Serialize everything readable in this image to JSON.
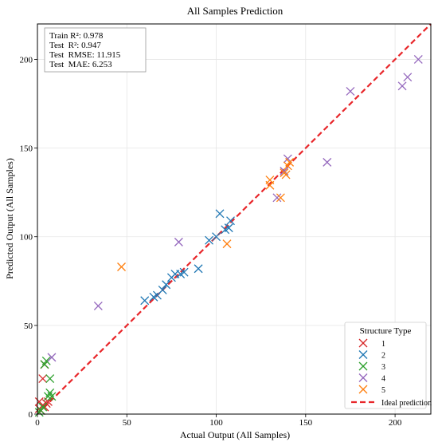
{
  "chart_data": {
    "type": "scatter",
    "title": "All Samples Prediction",
    "xlabel": "Actual Output (All Samples)",
    "ylabel": "Predicted Output (All Samples)",
    "xlim": [
      0,
      220
    ],
    "ylim": [
      0,
      220
    ],
    "xticks": [
      0,
      50,
      100,
      150,
      200
    ],
    "yticks": [
      0,
      50,
      100,
      150,
      200
    ],
    "grid": true,
    "marker": "x",
    "metrics": [
      "Train R²: 0.978",
      "Test  R²: 0.947",
      "Test  RMSE: 11.915",
      "Test  MAE: 6.253"
    ],
    "legend": {
      "title": "Structure Type",
      "placement": "lower-right",
      "ideal_label": "Ideal prediction"
    },
    "ideal_line": {
      "x": [
        0,
        220
      ],
      "y": [
        0,
        220
      ],
      "color": "#e8262a"
    },
    "series": [
      {
        "name": "1",
        "color": "#d62728",
        "points": [
          [
            1,
            7
          ],
          [
            1,
            3
          ],
          [
            2,
            2
          ],
          [
            3,
            5
          ],
          [
            3,
            20
          ],
          [
            4,
            28
          ],
          [
            4,
            4
          ],
          [
            5,
            6
          ],
          [
            6,
            7
          ]
        ]
      },
      {
        "name": "2",
        "color": "#1f77b4",
        "points": [
          [
            60,
            64
          ],
          [
            65,
            66
          ],
          [
            67,
            67
          ],
          [
            70,
            70
          ],
          [
            72,
            73
          ],
          [
            75,
            77
          ],
          [
            77,
            79
          ],
          [
            80,
            79
          ],
          [
            82,
            80
          ],
          [
            90,
            82
          ],
          [
            96,
            98
          ],
          [
            100,
            100
          ],
          [
            102,
            113
          ],
          [
            105,
            104
          ],
          [
            107,
            105
          ],
          [
            108,
            109
          ]
        ]
      },
      {
        "name": "3",
        "color": "#2ca02c",
        "points": [
          [
            1,
            1
          ],
          [
            2,
            2
          ],
          [
            3,
            4
          ],
          [
            4,
            28
          ],
          [
            5,
            30
          ],
          [
            6,
            10
          ],
          [
            7,
            12
          ],
          [
            7,
            20
          ],
          [
            8,
            10
          ]
        ]
      },
      {
        "name": "4",
        "color": "#9467bd",
        "points": [
          [
            8,
            32
          ],
          [
            34,
            61
          ],
          [
            79,
            97
          ],
          [
            134,
            122
          ],
          [
            138,
            137
          ],
          [
            140,
            144
          ],
          [
            162,
            142
          ],
          [
            175,
            182
          ],
          [
            204,
            185
          ],
          [
            207,
            190
          ],
          [
            213,
            200
          ]
        ]
      },
      {
        "name": "5",
        "color": "#ff7f0e",
        "points": [
          [
            47,
            83
          ],
          [
            106,
            96
          ],
          [
            130,
            129
          ],
          [
            130,
            132
          ],
          [
            136,
            122
          ],
          [
            138,
            136
          ],
          [
            139,
            135
          ],
          [
            140,
            140
          ],
          [
            141,
            142
          ]
        ]
      }
    ]
  }
}
